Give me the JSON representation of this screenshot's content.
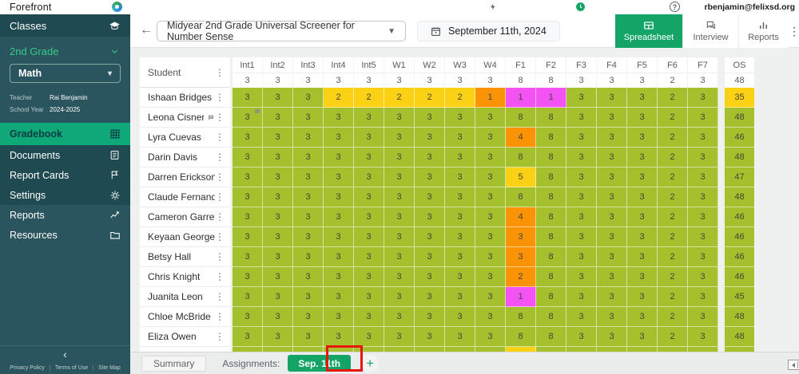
{
  "app": {
    "name": "Forefront",
    "user_email": "rbenjamin@felixsd.org"
  },
  "sidebar": {
    "classes_label": "Classes",
    "grade_label": "2nd Grade",
    "subject": "Math",
    "teacher_label": "Teacher",
    "teacher_name": "Rai Benjamin",
    "school_year_label": "School Year",
    "school_year": "2024-2025",
    "items": [
      {
        "label": "Gradebook",
        "icon": "grid-icon",
        "selected": true
      },
      {
        "label": "Documents",
        "icon": "document-icon",
        "selected": false
      },
      {
        "label": "Report Cards",
        "icon": "flag-icon",
        "selected": false
      },
      {
        "label": "Settings",
        "icon": "gear-icon",
        "selected": false
      },
      {
        "label": "Reports",
        "icon": "trend-icon",
        "selected": false
      },
      {
        "label": "Resources",
        "icon": "folder-icon",
        "selected": false
      }
    ],
    "collapse_glyph": "‹",
    "footer_links": [
      "Privacy Policy",
      "Terms of Use",
      "Site Map"
    ]
  },
  "topbar": {
    "screener_name": "Midyear 2nd Grade Universal Screener for Number Sense",
    "date": "September 11th, 2024",
    "tabs": [
      {
        "label": "Spreadsheet",
        "icon": "spreadsheet-icon",
        "active": true
      },
      {
        "label": "Interview",
        "icon": "chat-icon",
        "active": false
      },
      {
        "label": "Reports",
        "icon": "bar-chart-icon",
        "active": false
      }
    ]
  },
  "table": {
    "student_header": "Student",
    "columns": [
      "Int1",
      "Int2",
      "Int3",
      "Int4",
      "Int5",
      "W1",
      "W2",
      "W3",
      "W4",
      "F1",
      "F2",
      "F3",
      "F4",
      "F5",
      "F6",
      "F7"
    ],
    "max_scores": [
      3,
      3,
      3,
      3,
      3,
      3,
      3,
      3,
      3,
      8,
      8,
      3,
      3,
      3,
      2,
      3
    ],
    "os_header": "OS",
    "os_max": 48,
    "rows": [
      {
        "name": "Ishaan Bridges",
        "scores": [
          3,
          3,
          3,
          2,
          2,
          2,
          2,
          2,
          1,
          1,
          1,
          3,
          3,
          3,
          2,
          3
        ],
        "colors": [
          "g",
          "g",
          "g",
          "y",
          "y",
          "y",
          "y",
          "y",
          "o",
          "m",
          "m",
          "g",
          "g",
          "g",
          "g",
          "g"
        ],
        "os": 35,
        "os_color": "y"
      },
      {
        "name": "Leona Cisneros",
        "has_note": true,
        "note_cell": 0,
        "scores": [
          3,
          3,
          3,
          3,
          3,
          3,
          3,
          3,
          3,
          8,
          8,
          3,
          3,
          3,
          2,
          3
        ],
        "colors": [
          "g",
          "g",
          "g",
          "g",
          "g",
          "g",
          "g",
          "g",
          "g",
          "g",
          "g",
          "g",
          "g",
          "g",
          "g",
          "g"
        ],
        "os": 48,
        "os_color": "g"
      },
      {
        "name": "Lyra Cuevas",
        "scores": [
          3,
          3,
          3,
          3,
          3,
          3,
          3,
          3,
          3,
          4,
          8,
          3,
          3,
          3,
          2,
          3
        ],
        "colors": [
          "g",
          "g",
          "g",
          "g",
          "g",
          "g",
          "g",
          "g",
          "g",
          "o",
          "g",
          "g",
          "g",
          "g",
          "g",
          "g"
        ],
        "os": 46,
        "os_color": "g"
      },
      {
        "name": "Darin Davis",
        "scores": [
          3,
          3,
          3,
          3,
          3,
          3,
          3,
          3,
          3,
          8,
          8,
          3,
          3,
          3,
          2,
          3
        ],
        "colors": [
          "g",
          "g",
          "g",
          "g",
          "g",
          "g",
          "g",
          "g",
          "g",
          "g",
          "g",
          "g",
          "g",
          "g",
          "g",
          "g"
        ],
        "os": 48,
        "os_color": "g"
      },
      {
        "name": "Darren Erickson",
        "scores": [
          3,
          3,
          3,
          3,
          3,
          3,
          3,
          3,
          3,
          5,
          8,
          3,
          3,
          3,
          2,
          3
        ],
        "colors": [
          "g",
          "g",
          "g",
          "g",
          "g",
          "g",
          "g",
          "g",
          "g",
          "y",
          "g",
          "g",
          "g",
          "g",
          "g",
          "g"
        ],
        "os": 47,
        "os_color": "g"
      },
      {
        "name": "Claude Fernandez",
        "scores": [
          3,
          3,
          3,
          3,
          3,
          3,
          3,
          3,
          3,
          8,
          8,
          3,
          3,
          3,
          2,
          3
        ],
        "colors": [
          "g",
          "g",
          "g",
          "g",
          "g",
          "g",
          "g",
          "g",
          "g",
          "g",
          "g",
          "g",
          "g",
          "g",
          "g",
          "g"
        ],
        "os": 48,
        "os_color": "g"
      },
      {
        "name": "Cameron Garrett",
        "scores": [
          3,
          3,
          3,
          3,
          3,
          3,
          3,
          3,
          3,
          4,
          8,
          3,
          3,
          3,
          2,
          3
        ],
        "colors": [
          "g",
          "g",
          "g",
          "g",
          "g",
          "g",
          "g",
          "g",
          "g",
          "o",
          "g",
          "g",
          "g",
          "g",
          "g",
          "g"
        ],
        "os": 46,
        "os_color": "g"
      },
      {
        "name": "Keyaan George",
        "scores": [
          3,
          3,
          3,
          3,
          3,
          3,
          3,
          3,
          3,
          3,
          8,
          3,
          3,
          3,
          2,
          3
        ],
        "colors": [
          "g",
          "g",
          "g",
          "g",
          "g",
          "g",
          "g",
          "g",
          "g",
          "o",
          "g",
          "g",
          "g",
          "g",
          "g",
          "g"
        ],
        "os": 46,
        "os_color": "g"
      },
      {
        "name": "Betsy Hall",
        "scores": [
          3,
          3,
          3,
          3,
          3,
          3,
          3,
          3,
          3,
          3,
          8,
          3,
          3,
          3,
          2,
          3
        ],
        "colors": [
          "g",
          "g",
          "g",
          "g",
          "g",
          "g",
          "g",
          "g",
          "g",
          "o",
          "g",
          "g",
          "g",
          "g",
          "g",
          "g"
        ],
        "os": 46,
        "os_color": "g"
      },
      {
        "name": "Chris Knight",
        "scores": [
          3,
          3,
          3,
          3,
          3,
          3,
          3,
          3,
          3,
          2,
          8,
          3,
          3,
          3,
          2,
          3
        ],
        "colors": [
          "g",
          "g",
          "g",
          "g",
          "g",
          "g",
          "g",
          "g",
          "g",
          "o",
          "g",
          "g",
          "g",
          "g",
          "g",
          "g"
        ],
        "os": 46,
        "os_color": "g"
      },
      {
        "name": "Juanita Leon",
        "scores": [
          3,
          3,
          3,
          3,
          3,
          3,
          3,
          3,
          3,
          1,
          8,
          3,
          3,
          3,
          2,
          3
        ],
        "colors": [
          "g",
          "g",
          "g",
          "g",
          "g",
          "g",
          "g",
          "g",
          "g",
          "m",
          "g",
          "g",
          "g",
          "g",
          "g",
          "g"
        ],
        "os": 45,
        "os_color": "g"
      },
      {
        "name": "Chloe McBride",
        "scores": [
          3,
          3,
          3,
          3,
          3,
          3,
          3,
          3,
          3,
          8,
          8,
          3,
          3,
          3,
          2,
          3
        ],
        "colors": [
          "g",
          "g",
          "g",
          "g",
          "g",
          "g",
          "g",
          "g",
          "g",
          "g",
          "g",
          "g",
          "g",
          "g",
          "g",
          "g"
        ],
        "os": 48,
        "os_color": "g"
      },
      {
        "name": "Eliza Owen",
        "scores": [
          3,
          3,
          3,
          3,
          3,
          3,
          3,
          3,
          3,
          8,
          8,
          3,
          3,
          3,
          2,
          3
        ],
        "colors": [
          "g",
          "g",
          "g",
          "g",
          "g",
          "g",
          "g",
          "g",
          "g",
          "g",
          "g",
          "g",
          "g",
          "g",
          "g",
          "g"
        ],
        "os": 48,
        "os_color": "g"
      }
    ],
    "partial_row": {
      "colors": [
        "g",
        "g",
        "g",
        "g",
        "g",
        "g",
        "g",
        "g",
        "g",
        "y",
        "g",
        "g",
        "g",
        "g",
        "g",
        "g"
      ],
      "os_color": "g"
    }
  },
  "bottombar": {
    "summary_label": "Summary",
    "assignments_label": "Assignments:",
    "assignment_tab": "Sep. 11th",
    "add_button": "+"
  },
  "colors": {
    "green": "#a4c02c",
    "yellow": "#fbd116",
    "orange": "#fa9306",
    "magenta": "#f253f2",
    "accent": "#14a468",
    "nav_selected": "#10a878",
    "sidebar_dark": "#1f4a52",
    "sidebar_base": "#2a555e",
    "annotation": "#e8140e"
  }
}
